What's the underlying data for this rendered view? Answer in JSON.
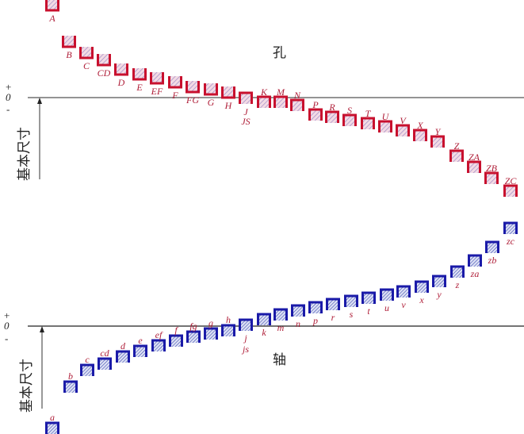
{
  "hole_title": "孔",
  "shaft_title": "轴",
  "basic_size_label": "基本尺寸",
  "zero_label": "0",
  "plus_sign": "+",
  "minus_sign": "-",
  "colors": {
    "hole": "#c8102e",
    "shaft": "#1a1aa8",
    "label": "#b0203a",
    "hole_fill": "#e9b7c9",
    "shaft_fill": "#9aa6de"
  },
  "holes": [
    "A",
    "B",
    "C",
    "CD",
    "D",
    "E",
    "EF",
    "F",
    "FG",
    "G",
    "H",
    "J",
    "JS",
    "K",
    "M",
    "N",
    "P",
    "R",
    "S",
    "T",
    "U",
    "V",
    "X",
    "Y",
    "Z",
    "ZA",
    "ZB",
    "ZC"
  ],
  "shafts": [
    "a",
    "b",
    "c",
    "cd",
    "d",
    "e",
    "ef",
    "f",
    "fg",
    "g",
    "h",
    "j",
    "js",
    "k",
    "m",
    "n",
    "p",
    "r",
    "s",
    "t",
    "u",
    "v",
    "x",
    "y",
    "z",
    "za",
    "zb",
    "zc"
  ]
}
